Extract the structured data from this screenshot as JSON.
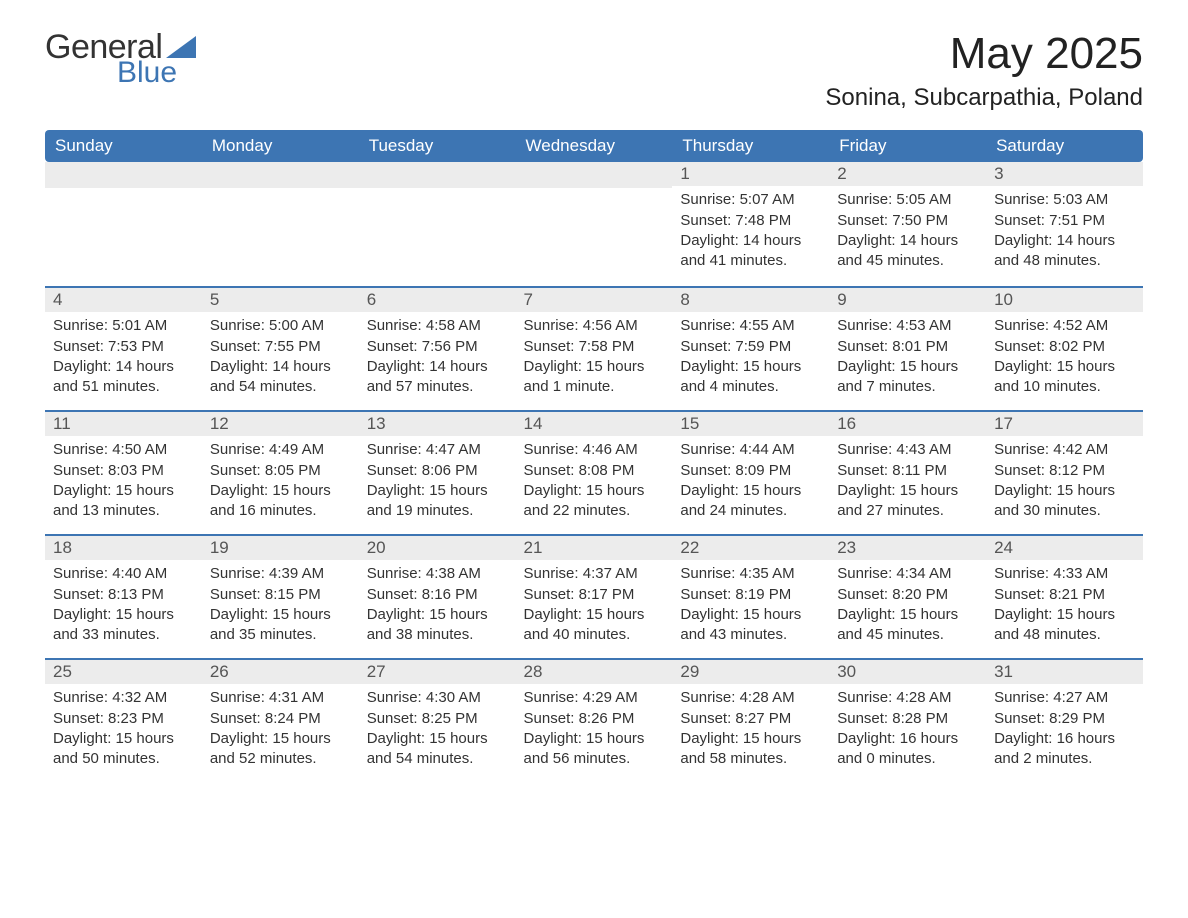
{
  "logo": {
    "word1": "General",
    "word2": "Blue",
    "tri_color": "#3d75b3"
  },
  "title": "May 2025",
  "location": "Sonina, Subcarpathia, Poland",
  "colors": {
    "header_bg": "#3d75b3",
    "header_text": "#ffffff",
    "daynum_bg": "#ececec",
    "row_divider": "#3d75b3",
    "body_text": "#333333"
  },
  "day_headers": [
    "Sunday",
    "Monday",
    "Tuesday",
    "Wednesday",
    "Thursday",
    "Friday",
    "Saturday"
  ],
  "first_weekday_index": 4,
  "days": [
    {
      "n": 1,
      "sunrise": "5:07 AM",
      "sunset": "7:48 PM",
      "daylight": "14 hours and 41 minutes."
    },
    {
      "n": 2,
      "sunrise": "5:05 AM",
      "sunset": "7:50 PM",
      "daylight": "14 hours and 45 minutes."
    },
    {
      "n": 3,
      "sunrise": "5:03 AM",
      "sunset": "7:51 PM",
      "daylight": "14 hours and 48 minutes."
    },
    {
      "n": 4,
      "sunrise": "5:01 AM",
      "sunset": "7:53 PM",
      "daylight": "14 hours and 51 minutes."
    },
    {
      "n": 5,
      "sunrise": "5:00 AM",
      "sunset": "7:55 PM",
      "daylight": "14 hours and 54 minutes."
    },
    {
      "n": 6,
      "sunrise": "4:58 AM",
      "sunset": "7:56 PM",
      "daylight": "14 hours and 57 minutes."
    },
    {
      "n": 7,
      "sunrise": "4:56 AM",
      "sunset": "7:58 PM",
      "daylight": "15 hours and 1 minute."
    },
    {
      "n": 8,
      "sunrise": "4:55 AM",
      "sunset": "7:59 PM",
      "daylight": "15 hours and 4 minutes."
    },
    {
      "n": 9,
      "sunrise": "4:53 AM",
      "sunset": "8:01 PM",
      "daylight": "15 hours and 7 minutes."
    },
    {
      "n": 10,
      "sunrise": "4:52 AM",
      "sunset": "8:02 PM",
      "daylight": "15 hours and 10 minutes."
    },
    {
      "n": 11,
      "sunrise": "4:50 AM",
      "sunset": "8:03 PM",
      "daylight": "15 hours and 13 minutes."
    },
    {
      "n": 12,
      "sunrise": "4:49 AM",
      "sunset": "8:05 PM",
      "daylight": "15 hours and 16 minutes."
    },
    {
      "n": 13,
      "sunrise": "4:47 AM",
      "sunset": "8:06 PM",
      "daylight": "15 hours and 19 minutes."
    },
    {
      "n": 14,
      "sunrise": "4:46 AM",
      "sunset": "8:08 PM",
      "daylight": "15 hours and 22 minutes."
    },
    {
      "n": 15,
      "sunrise": "4:44 AM",
      "sunset": "8:09 PM",
      "daylight": "15 hours and 24 minutes."
    },
    {
      "n": 16,
      "sunrise": "4:43 AM",
      "sunset": "8:11 PM",
      "daylight": "15 hours and 27 minutes."
    },
    {
      "n": 17,
      "sunrise": "4:42 AM",
      "sunset": "8:12 PM",
      "daylight": "15 hours and 30 minutes."
    },
    {
      "n": 18,
      "sunrise": "4:40 AM",
      "sunset": "8:13 PM",
      "daylight": "15 hours and 33 minutes."
    },
    {
      "n": 19,
      "sunrise": "4:39 AM",
      "sunset": "8:15 PM",
      "daylight": "15 hours and 35 minutes."
    },
    {
      "n": 20,
      "sunrise": "4:38 AM",
      "sunset": "8:16 PM",
      "daylight": "15 hours and 38 minutes."
    },
    {
      "n": 21,
      "sunrise": "4:37 AM",
      "sunset": "8:17 PM",
      "daylight": "15 hours and 40 minutes."
    },
    {
      "n": 22,
      "sunrise": "4:35 AM",
      "sunset": "8:19 PM",
      "daylight": "15 hours and 43 minutes."
    },
    {
      "n": 23,
      "sunrise": "4:34 AM",
      "sunset": "8:20 PM",
      "daylight": "15 hours and 45 minutes."
    },
    {
      "n": 24,
      "sunrise": "4:33 AM",
      "sunset": "8:21 PM",
      "daylight": "15 hours and 48 minutes."
    },
    {
      "n": 25,
      "sunrise": "4:32 AM",
      "sunset": "8:23 PM",
      "daylight": "15 hours and 50 minutes."
    },
    {
      "n": 26,
      "sunrise": "4:31 AM",
      "sunset": "8:24 PM",
      "daylight": "15 hours and 52 minutes."
    },
    {
      "n": 27,
      "sunrise": "4:30 AM",
      "sunset": "8:25 PM",
      "daylight": "15 hours and 54 minutes."
    },
    {
      "n": 28,
      "sunrise": "4:29 AM",
      "sunset": "8:26 PM",
      "daylight": "15 hours and 56 minutes."
    },
    {
      "n": 29,
      "sunrise": "4:28 AM",
      "sunset": "8:27 PM",
      "daylight": "15 hours and 58 minutes."
    },
    {
      "n": 30,
      "sunrise": "4:28 AM",
      "sunset": "8:28 PM",
      "daylight": "16 hours and 0 minutes."
    },
    {
      "n": 31,
      "sunrise": "4:27 AM",
      "sunset": "8:29 PM",
      "daylight": "16 hours and 2 minutes."
    }
  ],
  "labels": {
    "sunrise": "Sunrise: ",
    "sunset": "Sunset: ",
    "daylight": "Daylight: "
  }
}
